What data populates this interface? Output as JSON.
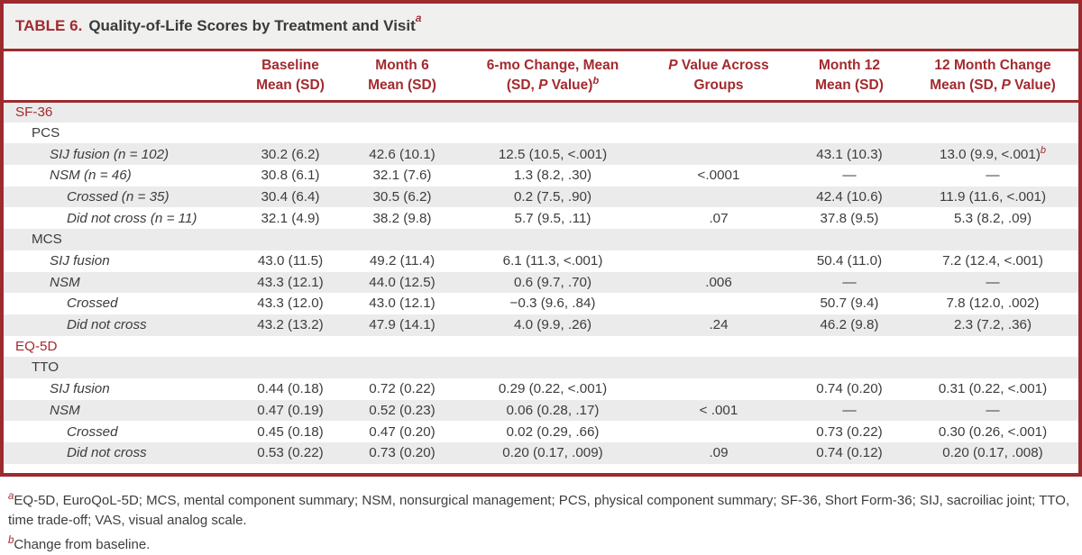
{
  "table": {
    "title": {
      "label": "TABLE 6.",
      "text": "Quality-of-Life Scores by Treatment and Visit",
      "marker": "a"
    },
    "columns": [
      {
        "line1": "",
        "line2": ""
      },
      {
        "line1": "Baseline",
        "line2": "Mean (SD)"
      },
      {
        "line1": "Month 6",
        "line2": "Mean (SD)"
      },
      {
        "line1": "6-mo Change, Mean",
        "line2": "(SD, {P} Value){b}"
      },
      {
        "line1": "{P} Value Across",
        "line2": "Groups"
      },
      {
        "line1": "Month 12",
        "line2": "Mean (SD)"
      },
      {
        "line1": "12 Month Change",
        "line2": "Mean (SD, {P} Value)"
      }
    ],
    "rows": [
      {
        "label": "SF-36",
        "indent": 0,
        "kind": "section",
        "cells": [
          "",
          "",
          "",
          "",
          "",
          ""
        ]
      },
      {
        "label": "PCS",
        "indent": 1,
        "kind": "group",
        "cells": [
          "",
          "",
          "",
          "",
          "",
          ""
        ]
      },
      {
        "label": "SIJ fusion (n = 102)",
        "indent": 2,
        "kind": "item",
        "cells": [
          "30.2 (6.2)",
          "42.6 (10.1)",
          "12.5 (10.5, <.001)",
          "",
          "43.1 (10.3)",
          "13.0 (9.9, <.001){b}"
        ]
      },
      {
        "label": "NSM (n = 46)",
        "indent": 2,
        "kind": "item",
        "cells": [
          "30.8 (6.1)",
          "32.1 (7.6)",
          "1.3 (8.2, .30)",
          "<.0001",
          "—",
          "—"
        ]
      },
      {
        "label": "Crossed (n = 35)",
        "indent": 3,
        "kind": "item",
        "cells": [
          "30.4 (6.4)",
          "30.5 (6.2)",
          "0.2 (7.5, .90)",
          "",
          "42.4 (10.6)",
          "11.9 (11.6, <.001)"
        ]
      },
      {
        "label": "Did not cross (n = 11)",
        "indent": 3,
        "kind": "item",
        "cells": [
          "32.1 (4.9)",
          "38.2 (9.8)",
          "5.7 (9.5, .11)",
          ".07",
          "37.8 (9.5)",
          "5.3 (8.2, .09)"
        ]
      },
      {
        "label": "MCS",
        "indent": 1,
        "kind": "group",
        "cells": [
          "",
          "",
          "",
          "",
          "",
          ""
        ]
      },
      {
        "label": "SIJ fusion",
        "indent": 2,
        "kind": "item",
        "cells": [
          "43.0 (11.5)",
          "49.2 (11.4)",
          "6.1 (11.3, <.001)",
          "",
          "50.4 (11.0)",
          "7.2 (12.4, <.001)"
        ]
      },
      {
        "label": "NSM",
        "indent": 2,
        "kind": "item",
        "cells": [
          "43.3 (12.1)",
          "44.0 (12.5)",
          "0.6 (9.7, .70)",
          ".006",
          "—",
          "—"
        ]
      },
      {
        "label": "Crossed",
        "indent": 3,
        "kind": "item",
        "cells": [
          "43.3 (12.0)",
          "43.0 (12.1)",
          "−0.3 (9.6, .84)",
          "",
          "50.7 (9.4)",
          "7.8 (12.0, .002)"
        ]
      },
      {
        "label": "Did not cross",
        "indent": 3,
        "kind": "item",
        "cells": [
          "43.2 (13.2)",
          "47.9 (14.1)",
          "4.0 (9.9, .26)",
          ".24",
          "46.2 (9.8)",
          "2.3 (7.2, .36)"
        ]
      },
      {
        "label": "EQ-5D",
        "indent": 0,
        "kind": "section",
        "cells": [
          "",
          "",
          "",
          "",
          "",
          ""
        ]
      },
      {
        "label": "TTO",
        "indent": 1,
        "kind": "group",
        "cells": [
          "",
          "",
          "",
          "",
          "",
          ""
        ]
      },
      {
        "label": "SIJ fusion",
        "indent": 2,
        "kind": "item",
        "cells": [
          "0.44 (0.18)",
          "0.72 (0.22)",
          "0.29 (0.22, <.001)",
          "",
          "0.74 (0.20)",
          "0.31 (0.22, <.001)"
        ]
      },
      {
        "label": "NSM",
        "indent": 2,
        "kind": "item",
        "cells": [
          "0.47 (0.19)",
          "0.52 (0.23)",
          "0.06 (0.28, .17)",
          "< .001",
          "—",
          "—"
        ]
      },
      {
        "label": "Crossed",
        "indent": 3,
        "kind": "item",
        "cells": [
          "0.45 (0.18)",
          "0.47 (0.20)",
          "0.02 (0.29, .66)",
          "",
          "0.73 (0.22)",
          "0.30 (0.26, <.001)"
        ]
      },
      {
        "label": "Did not cross",
        "indent": 3,
        "kind": "item",
        "cells": [
          "0.53 (0.22)",
          "0.73 (0.20)",
          "0.20 (0.17, .009)",
          ".09",
          "0.74 (0.12)",
          "0.20 (0.17, .008)"
        ]
      }
    ]
  },
  "footnotes": [
    {
      "marker": "a",
      "text": "EQ-5D, EuroQoL-5D; MCS, mental component summary; NSM, nonsurgical management; PCS, physical component summary; SF-36, Short Form-36; SIJ, sacroiliac joint; TTO, time trade-off; VAS, visual analog scale."
    },
    {
      "marker": "b",
      "text": "Change from baseline."
    }
  ],
  "colors": {
    "accent_red": "#A32A2E",
    "border_red": "#9B2B2E",
    "row_shade": "#EBEBEB",
    "title_bar_bg": "#F0F0EF"
  }
}
